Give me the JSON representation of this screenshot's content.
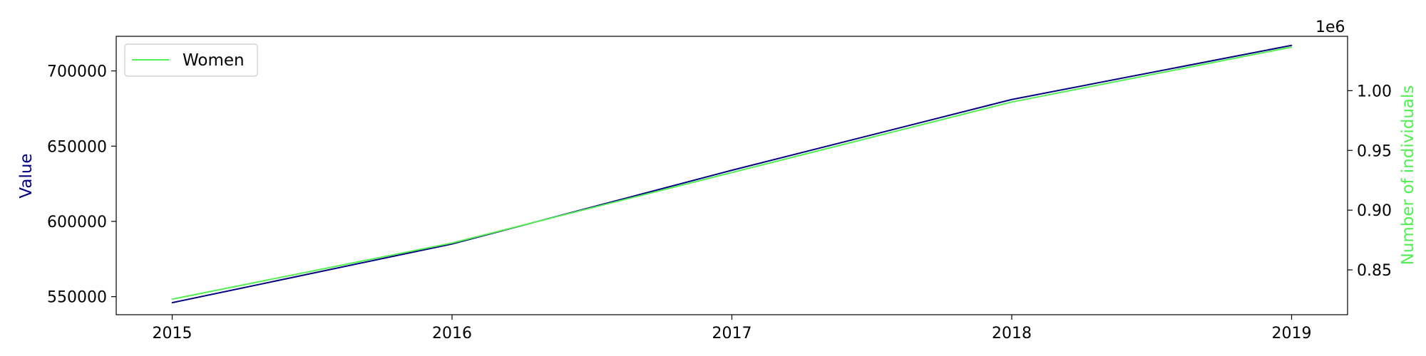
{
  "chart_data": {
    "type": "line",
    "title": "",
    "xlabel": "",
    "x": [
      "2015",
      "2016",
      "2017",
      "2018",
      "2019"
    ],
    "xlim": [
      2014.8,
      2019.2
    ],
    "left_axis": {
      "label": "Value",
      "color": "#000080",
      "ylim": [
        538000,
        723000
      ],
      "ticks": [
        "550000",
        "600000",
        "650000",
        "700000"
      ],
      "tick_values": [
        550000,
        600000,
        650000,
        700000
      ]
    },
    "right_axis": {
      "label": "Number of individuals",
      "color": "#55ee55",
      "ylim": [
        0.8125,
        1.0455
      ],
      "offset_text": "1e6",
      "ticks": [
        "0.85",
        "0.90",
        "0.95",
        "1.00"
      ],
      "tick_values": [
        0.85,
        0.9,
        0.95,
        1.0
      ]
    },
    "series": [
      {
        "axis": "left",
        "color": "#000080",
        "values": [
          546000,
          585000,
          634000,
          681000,
          717000
        ]
      },
      {
        "name": "Women",
        "axis": "right",
        "color": "#55ee55",
        "values": [
          0.8255,
          0.8725,
          0.9315,
          0.9905,
          1.0365
        ]
      }
    ],
    "legend": {
      "position": "top-left",
      "entries": [
        "Women"
      ]
    },
    "grid": false
  }
}
